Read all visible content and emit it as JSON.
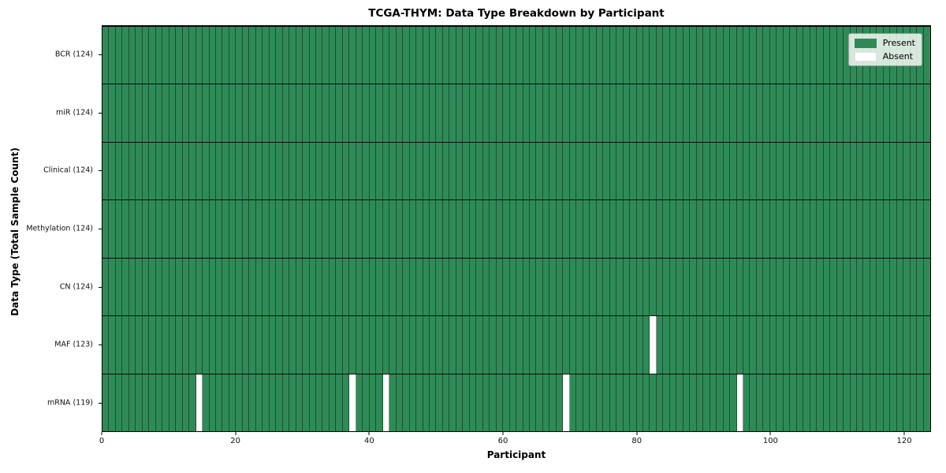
{
  "figure": {
    "title": "TCGA-THYM: Data Type Breakdown by Participant",
    "xlabel": "Participant",
    "ylabel": "Data Type (Total Sample Count)"
  },
  "legend": {
    "present_label": "Present",
    "absent_label": "Absent"
  },
  "colors": {
    "present": "#2e8b57",
    "absent": "#ffffff",
    "cell_edge": "rgba(0,0,0,0.42)",
    "row_separator": "#0a0a0a",
    "legend_background": "rgba(252,252,250,0.82)"
  },
  "chart_data": {
    "type": "heatmap",
    "title": "TCGA-THYM: Data Type Breakdown by Participant",
    "xlabel": "Participant",
    "ylabel": "Data Type (Total Sample Count)",
    "n_participants": 124,
    "xlim": [
      0,
      124
    ],
    "x_ticks": [
      0,
      20,
      40,
      60,
      80,
      100,
      120
    ],
    "legend_entries": [
      {
        "label": "Present",
        "color": "#2e8b57"
      },
      {
        "label": "Absent",
        "color": "#ffffff"
      }
    ],
    "legend_position": "upper right",
    "grid": "cell-edges",
    "rows": [
      {
        "data_type": "BCR",
        "label": "BCR (124)",
        "present_count": 124,
        "absent_participants": []
      },
      {
        "data_type": "miR",
        "label": "miR (124)",
        "present_count": 124,
        "absent_participants": []
      },
      {
        "data_type": "Clinical",
        "label": "Clinical (124)",
        "present_count": 124,
        "absent_participants": []
      },
      {
        "data_type": "Methylation",
        "label": "Methylation (124)",
        "present_count": 124,
        "absent_participants": []
      },
      {
        "data_type": "CN",
        "label": "CN (124)",
        "present_count": 124,
        "absent_participants": []
      },
      {
        "data_type": "MAF",
        "label": "MAF (123)",
        "present_count": 123,
        "absent_participants": [
          82
        ]
      },
      {
        "data_type": "mRNA",
        "label": "mRNA (119)",
        "present_count": 119,
        "absent_participants": [
          14,
          37,
          42,
          69,
          95
        ]
      }
    ]
  }
}
